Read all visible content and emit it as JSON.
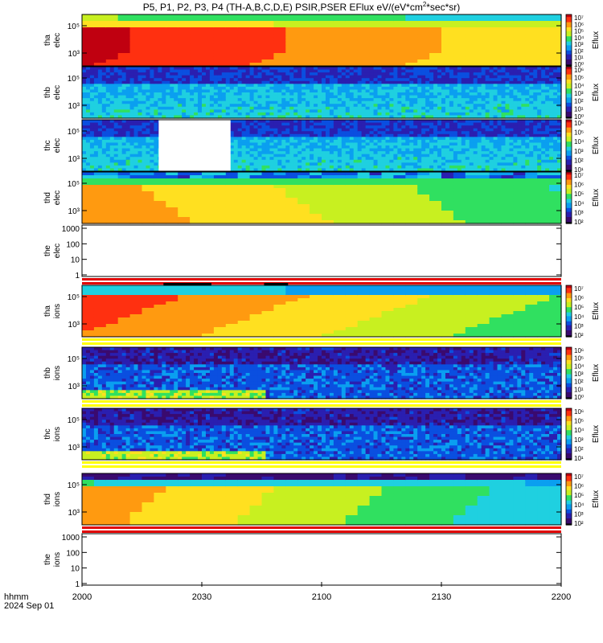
{
  "title": "P5, P1, P2, P3, P4 (TH-A,B,C,D,E) PSIR,PSER EFlux eV/(eV*cm²*sec*sr)",
  "title_parts": {
    "main": "P5, P1, P2, P3, P4 (TH-A,B,C,D,E) PSIR,PSER EFlux eV/(eV*cm",
    "sup": "2",
    "tail": "*sec*sr)"
  },
  "footer": {
    "line1": "hhmm",
    "line2": "2024 Sep 01"
  },
  "colorbar_label": "Eflux",
  "colors": {
    "jet": [
      "#000000",
      "#3a0a6e",
      "#2a1fb0",
      "#0a4fe0",
      "#0a9ff0",
      "#1fd0e0",
      "#30e060",
      "#c8f020",
      "#ffe020",
      "#ff9a10",
      "#ff3010",
      "#c00010"
    ],
    "bar_red": "#e00000",
    "bar_yellow": "#ffff00"
  },
  "chart_data": {
    "type": "heatmap",
    "x_axis": {
      "ticks": [
        "2000",
        "2030",
        "2100",
        "2130",
        "2200"
      ],
      "range": [
        "20:00",
        "22:00"
      ]
    },
    "panels": [
      {
        "id": "tha-elec",
        "label1": "tha",
        "label2": "elec",
        "yscale": "log",
        "yticks": [
          "10⁵",
          "10³"
        ],
        "cbar": [
          "10⁷",
          "10⁶",
          "10⁵",
          "10⁴",
          "10³",
          "10²",
          "10¹",
          "10⁰"
        ],
        "profile": "strong",
        "status_bar": null
      },
      {
        "id": "thb-elec",
        "label1": "thb",
        "label2": "elec",
        "yscale": "log",
        "yticks": [
          "10⁵",
          "10³"
        ],
        "cbar": [
          "10⁶",
          "10⁵",
          "10⁴",
          "10³",
          "10²",
          "10¹",
          "10⁰"
        ],
        "profile": "noisy",
        "status_bar": null
      },
      {
        "id": "thc-elec",
        "label1": "thc",
        "label2": "elec",
        "yscale": "log",
        "yticks": [
          "10⁵",
          "10³"
        ],
        "cbar": [
          "10⁶",
          "10⁵",
          "10⁴",
          "10³",
          "10²",
          "10¹"
        ],
        "profile": "noisy_gap",
        "status_bar": null
      },
      {
        "id": "thd-elec",
        "label1": "thd",
        "label2": "elec",
        "yscale": "log",
        "yticks": [
          "10⁵",
          "10³"
        ],
        "cbar": [
          "10⁷",
          "10⁶",
          "10⁵",
          "10⁴",
          "10³",
          "10²"
        ],
        "profile": "warm",
        "status_bar": null
      },
      {
        "id": "the-elec",
        "label1": "the",
        "label2": "elec",
        "yscale": "log",
        "yticks": [
          "1000",
          "100",
          "10",
          "1"
        ],
        "cbar": null,
        "profile": "empty",
        "status_bar": "red"
      },
      {
        "id": "tha-ions",
        "label1": "tha",
        "label2": "ions",
        "yscale": "log",
        "yticks": [
          "10⁵",
          "10³"
        ],
        "cbar": [
          "10⁷",
          "10⁶",
          "10⁵",
          "10⁴",
          "10³",
          "10²"
        ],
        "profile": "ions_strong",
        "status_bar": "yellow"
      },
      {
        "id": "thb-ions",
        "label1": "thb",
        "label2": "ions",
        "yscale": "log",
        "yticks": [
          "10⁵",
          "10³"
        ],
        "cbar": [
          "10⁶",
          "10⁵",
          "10⁴",
          "10³",
          "10²",
          "10¹",
          "10⁰"
        ],
        "profile": "ions_noisy",
        "status_bar": "yellow"
      },
      {
        "id": "thc-ions",
        "label1": "thc",
        "label2": "ions",
        "yscale": "log",
        "yticks": [
          "10⁵",
          "10³"
        ],
        "cbar": [
          "10⁶",
          "10⁵",
          "10⁴",
          "10³",
          "10²",
          "10¹"
        ],
        "profile": "ions_noisy",
        "status_bar": "yellow"
      },
      {
        "id": "thd-ions",
        "label1": "thd",
        "label2": "ions",
        "yscale": "log",
        "yticks": [
          "10⁵",
          "10³"
        ],
        "cbar": [
          "10⁷",
          "10⁶",
          "10⁵",
          "10⁴",
          "10³",
          "10²"
        ],
        "profile": "ions_warm",
        "status_bar": "red"
      },
      {
        "id": "the-ions",
        "label1": "the",
        "label2": "ions",
        "yscale": "log",
        "yticks": [
          "1000",
          "100",
          "10",
          "1"
        ],
        "cbar": null,
        "profile": "empty",
        "status_bar": null
      }
    ]
  }
}
